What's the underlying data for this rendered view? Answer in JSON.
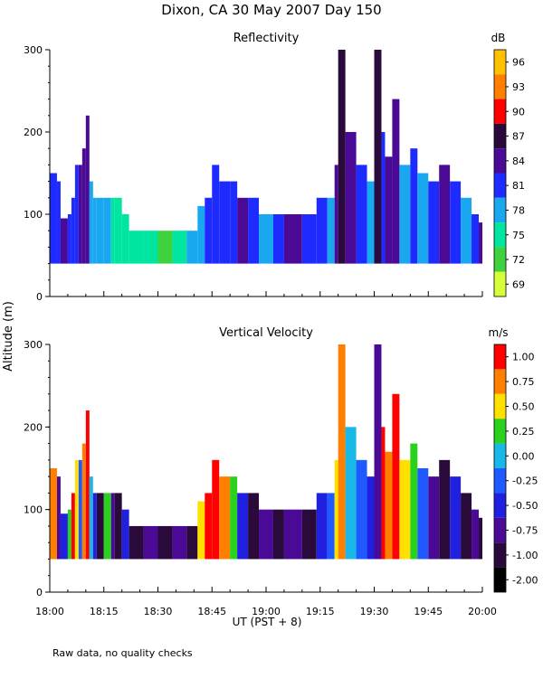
{
  "title": "Dixon, CA 30 May 2007  Day 150",
  "ylabel": "Altitude (m)",
  "xlabel": "UT  (PST + 8)",
  "footnote": "Raw data, no quality checks",
  "x_tick_labels": [
    "18:00",
    "18:15",
    "18:30",
    "18:45",
    "19:00",
    "19:15",
    "19:30",
    "19:45",
    "20:00"
  ],
  "chart_data": [
    {
      "type": "heatmap",
      "title": "Reflectivity",
      "colorbar_label": "dB",
      "xlim": [
        0,
        120
      ],
      "x_units": "minutes after 18:00 UT",
      "ylim": [
        0,
        300
      ],
      "y_ticks": [
        0,
        100,
        200,
        300
      ],
      "colorbar_ticks": [
        "96",
        "93",
        "90",
        "87",
        "84",
        "81",
        "78",
        "75",
        "72",
        "69"
      ],
      "colors": [
        "#ffc000",
        "#ff7f00",
        "#ff0000",
        "#2a0a3a",
        "#4a0a96",
        "#1e2bff",
        "#19a8f0",
        "#00e6a0",
        "#3fd23f",
        "#d6ff3a"
      ],
      "gate_floor_m": 40,
      "columns": [
        {
          "x": 0,
          "top": 150,
          "value": 81
        },
        {
          "x": 2,
          "top": 140,
          "value": 81
        },
        {
          "x": 3,
          "top": 95,
          "value": 84
        },
        {
          "x": 5,
          "top": 100,
          "value": 81
        },
        {
          "x": 6,
          "top": 120,
          "value": 81
        },
        {
          "x": 7,
          "top": 160,
          "value": 81
        },
        {
          "x": 8,
          "top": 160,
          "value": 84
        },
        {
          "x": 9,
          "top": 180,
          "value": 84
        },
        {
          "x": 10,
          "top": 220,
          "value": 84
        },
        {
          "x": 11,
          "top": 140,
          "value": 78
        },
        {
          "x": 12,
          "top": 120,
          "value": 78
        },
        {
          "x": 13,
          "top": 120,
          "value": 78
        },
        {
          "x": 15,
          "top": 120,
          "value": 78
        },
        {
          "x": 17,
          "top": 120,
          "value": 75
        },
        {
          "x": 18,
          "top": 120,
          "value": 75
        },
        {
          "x": 20,
          "top": 100,
          "value": 75
        },
        {
          "x": 22,
          "top": 80,
          "value": 75
        },
        {
          "x": 26,
          "top": 80,
          "value": 75
        },
        {
          "x": 30,
          "top": 80,
          "value": 72
        },
        {
          "x": 34,
          "top": 80,
          "value": 75
        },
        {
          "x": 38,
          "top": 80,
          "value": 78
        },
        {
          "x": 41,
          "top": 110,
          "value": 78
        },
        {
          "x": 43,
          "top": 120,
          "value": 81
        },
        {
          "x": 45,
          "top": 160,
          "value": 81
        },
        {
          "x": 47,
          "top": 140,
          "value": 81
        },
        {
          "x": 50,
          "top": 140,
          "value": 81
        },
        {
          "x": 52,
          "top": 120,
          "value": 84
        },
        {
          "x": 55,
          "top": 120,
          "value": 81
        },
        {
          "x": 58,
          "top": 100,
          "value": 78
        },
        {
          "x": 62,
          "top": 100,
          "value": 81
        },
        {
          "x": 65,
          "top": 100,
          "value": 84
        },
        {
          "x": 70,
          "top": 100,
          "value": 81
        },
        {
          "x": 74,
          "top": 120,
          "value": 81
        },
        {
          "x": 77,
          "top": 120,
          "value": 78
        },
        {
          "x": 79,
          "top": 160,
          "value": 84
        },
        {
          "x": 80,
          "top": 300,
          "value": 87
        },
        {
          "x": 82,
          "top": 200,
          "value": 84
        },
        {
          "x": 85,
          "top": 160,
          "value": 81
        },
        {
          "x": 88,
          "top": 140,
          "value": 78
        },
        {
          "x": 90,
          "top": 300,
          "value": 87
        },
        {
          "x": 92,
          "top": 200,
          "value": 81
        },
        {
          "x": 93,
          "top": 170,
          "value": 84
        },
        {
          "x": 95,
          "top": 240,
          "value": 84
        },
        {
          "x": 97,
          "top": 160,
          "value": 78
        },
        {
          "x": 100,
          "top": 180,
          "value": 81
        },
        {
          "x": 102,
          "top": 150,
          "value": 78
        },
        {
          "x": 105,
          "top": 140,
          "value": 81
        },
        {
          "x": 108,
          "top": 160,
          "value": 84
        },
        {
          "x": 111,
          "top": 140,
          "value": 81
        },
        {
          "x": 114,
          "top": 120,
          "value": 78
        },
        {
          "x": 117,
          "top": 100,
          "value": 81
        },
        {
          "x": 119,
          "top": 90,
          "value": 84
        }
      ]
    },
    {
      "type": "heatmap",
      "title": "Vertical Velocity",
      "colorbar_label": "m/s",
      "xlim": [
        0,
        120
      ],
      "x_units": "minutes after 18:00 UT",
      "ylim": [
        0,
        300
      ],
      "y_ticks": [
        0,
        100,
        200,
        300
      ],
      "colorbar_ticks": [
        "1.00",
        "0.75",
        "0.50",
        "0.25",
        "0.00",
        "-0.25",
        "-0.50",
        "-0.75",
        "-1.00",
        "-2.00"
      ],
      "colors": [
        "#ff0000",
        "#ff7f00",
        "#ffe000",
        "#2ad21e",
        "#19b8e6",
        "#1e5aff",
        "#2020e0",
        "#4a0a96",
        "#2a0a3a",
        "#000000"
      ],
      "gate_floor_m": 40,
      "columns": [
        {
          "x": 0,
          "top": 150,
          "value": 0.75
        },
        {
          "x": 2,
          "top": 140,
          "value": -0.75
        },
        {
          "x": 3,
          "top": 95,
          "value": -0.5
        },
        {
          "x": 5,
          "top": 100,
          "value": 0.25
        },
        {
          "x": 6,
          "top": 120,
          "value": 1.0
        },
        {
          "x": 7,
          "top": 160,
          "value": 0.5
        },
        {
          "x": 8,
          "top": 160,
          "value": -0.25
        },
        {
          "x": 9,
          "top": 180,
          "value": 0.75
        },
        {
          "x": 10,
          "top": 220,
          "value": 1.0
        },
        {
          "x": 11,
          "top": 140,
          "value": 0.0
        },
        {
          "x": 12,
          "top": 120,
          "value": -0.5
        },
        {
          "x": 13,
          "top": 120,
          "value": -1.0
        },
        {
          "x": 15,
          "top": 120,
          "value": 0.25
        },
        {
          "x": 17,
          "top": 120,
          "value": -0.75
        },
        {
          "x": 18,
          "top": 120,
          "value": -1.0
        },
        {
          "x": 20,
          "top": 100,
          "value": -0.5
        },
        {
          "x": 22,
          "top": 80,
          "value": -1.0
        },
        {
          "x": 26,
          "top": 80,
          "value": -0.75
        },
        {
          "x": 30,
          "top": 80,
          "value": -1.0
        },
        {
          "x": 34,
          "top": 80,
          "value": -0.75
        },
        {
          "x": 38,
          "top": 80,
          "value": -1.0
        },
        {
          "x": 41,
          "top": 110,
          "value": 0.5
        },
        {
          "x": 43,
          "top": 120,
          "value": 1.0
        },
        {
          "x": 45,
          "top": 160,
          "value": 1.0
        },
        {
          "x": 47,
          "top": 140,
          "value": 0.75
        },
        {
          "x": 50,
          "top": 140,
          "value": 0.25
        },
        {
          "x": 52,
          "top": 120,
          "value": -0.5
        },
        {
          "x": 55,
          "top": 120,
          "value": -1.0
        },
        {
          "x": 58,
          "top": 100,
          "value": -0.75
        },
        {
          "x": 62,
          "top": 100,
          "value": -1.0
        },
        {
          "x": 65,
          "top": 100,
          "value": -0.75
        },
        {
          "x": 70,
          "top": 100,
          "value": -1.0
        },
        {
          "x": 74,
          "top": 120,
          "value": -0.5
        },
        {
          "x": 77,
          "top": 120,
          "value": -0.25
        },
        {
          "x": 79,
          "top": 160,
          "value": 0.5
        },
        {
          "x": 80,
          "top": 300,
          "value": 0.75
        },
        {
          "x": 82,
          "top": 200,
          "value": 0.0
        },
        {
          "x": 85,
          "top": 160,
          "value": -0.25
        },
        {
          "x": 88,
          "top": 140,
          "value": -0.5
        },
        {
          "x": 90,
          "top": 300,
          "value": -0.75
        },
        {
          "x": 92,
          "top": 200,
          "value": 1.0
        },
        {
          "x": 93,
          "top": 170,
          "value": 0.75
        },
        {
          "x": 95,
          "top": 240,
          "value": 1.0
        },
        {
          "x": 97,
          "top": 160,
          "value": 0.5
        },
        {
          "x": 100,
          "top": 180,
          "value": 0.25
        },
        {
          "x": 102,
          "top": 150,
          "value": -0.25
        },
        {
          "x": 105,
          "top": 140,
          "value": -0.75
        },
        {
          "x": 108,
          "top": 160,
          "value": -1.0
        },
        {
          "x": 111,
          "top": 140,
          "value": -0.5
        },
        {
          "x": 114,
          "top": 120,
          "value": -1.0
        },
        {
          "x": 117,
          "top": 100,
          "value": -0.75
        },
        {
          "x": 119,
          "top": 90,
          "value": -1.0
        }
      ]
    }
  ]
}
